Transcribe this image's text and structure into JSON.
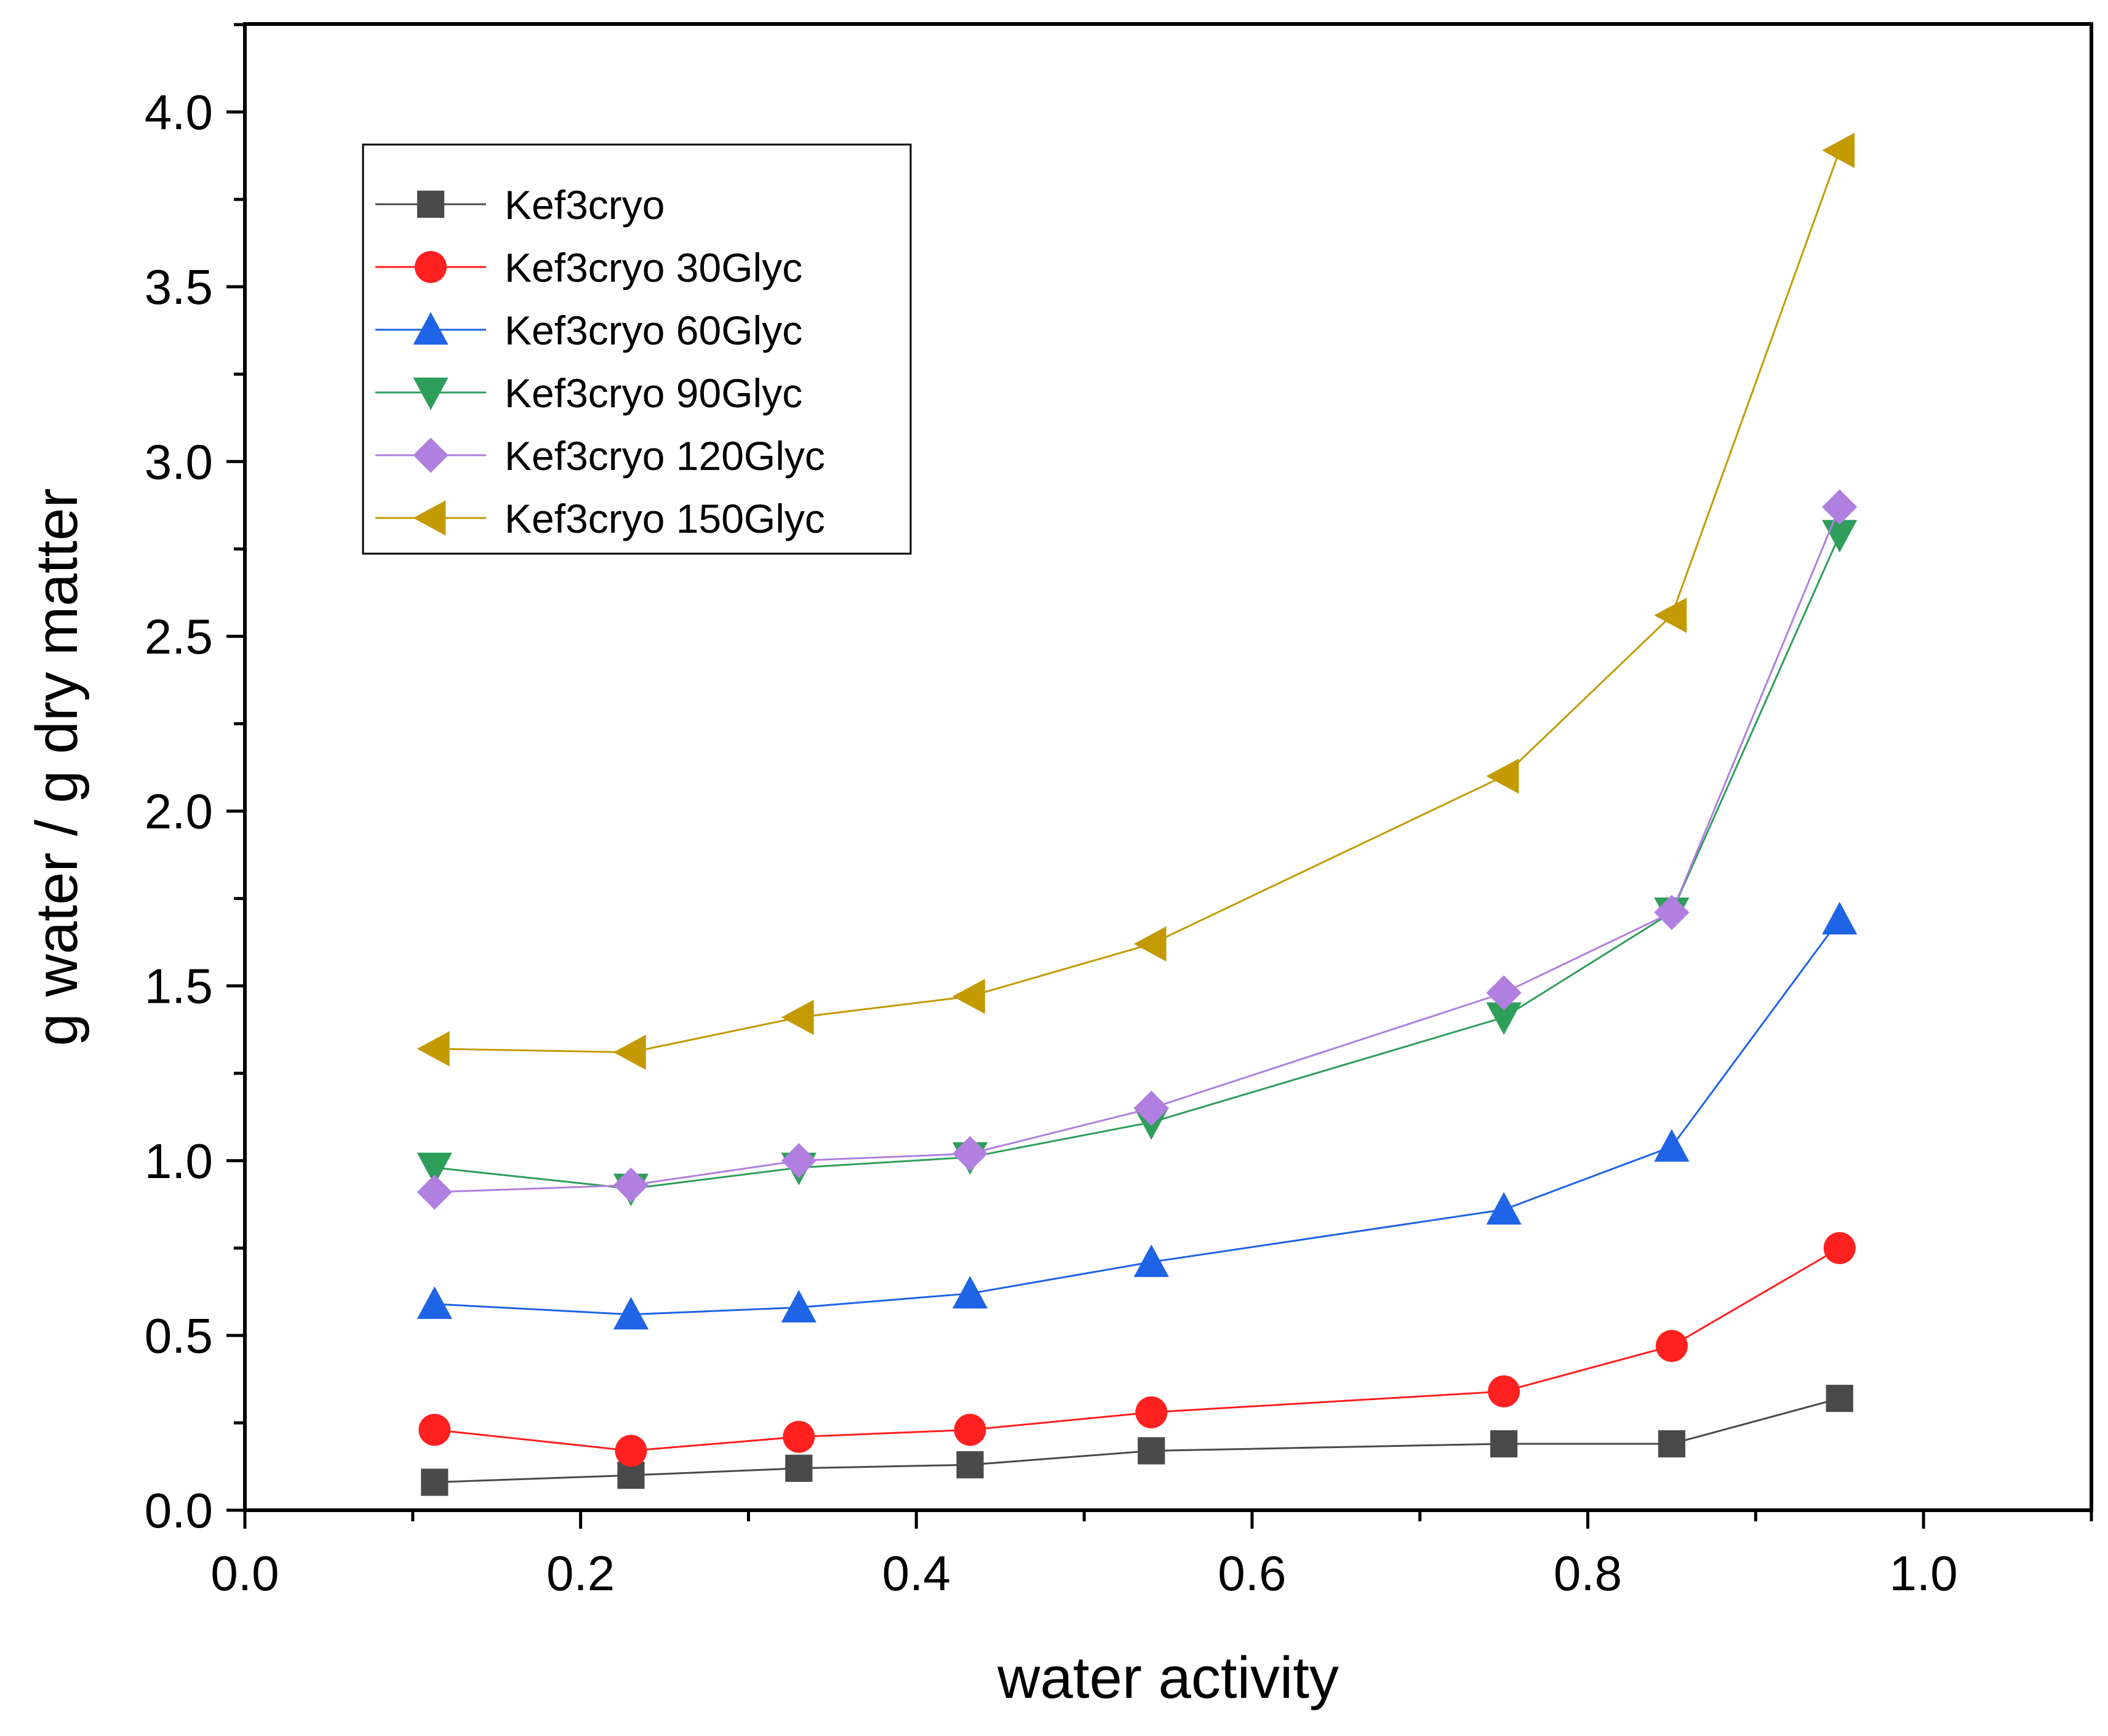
{
  "chart_data": {
    "type": "line",
    "title": "",
    "xlabel": "water activity",
    "ylabel": "g water / g dry matter",
    "xlim": [
      0.0,
      1.1
    ],
    "ylim": [
      0.0,
      4.2
    ],
    "x_ticks": [
      "0.0",
      "0.2",
      "0.4",
      "0.6",
      "0.8",
      "1.0"
    ],
    "y_ticks": [
      "0.0",
      "0.5",
      "1.0",
      "1.5",
      "2.0",
      "2.5",
      "3.0",
      "3.5",
      "4.0"
    ],
    "grid": false,
    "legend_position": "top-left",
    "x": [
      0.113,
      0.23,
      0.33,
      0.432,
      0.54,
      0.75,
      0.85,
      0.95
    ],
    "series": [
      {
        "name": "Kef3cryo",
        "marker": "square",
        "color": "#4a4a4a",
        "values": [
          0.08,
          0.1,
          0.12,
          0.13,
          0.17,
          0.19,
          0.19,
          0.32
        ]
      },
      {
        "name": "Kef3cryo 30Glyc",
        "marker": "circle",
        "color": "#ff2020",
        "values": [
          0.23,
          0.17,
          0.21,
          0.23,
          0.28,
          0.34,
          0.47,
          0.75
        ]
      },
      {
        "name": "Kef3cryo 60Glyc",
        "marker": "triangle-up",
        "color": "#1f63e6",
        "values": [
          0.59,
          0.56,
          0.58,
          0.62,
          0.71,
          0.86,
          1.04,
          1.69
        ]
      },
      {
        "name": "Kef3cryo 90Glyc",
        "marker": "triangle-down",
        "color": "#2e9e5b",
        "values": [
          0.98,
          0.92,
          0.98,
          1.01,
          1.11,
          1.41,
          1.71,
          2.79
        ]
      },
      {
        "name": "Kef3cryo 120Glyc",
        "marker": "diamond",
        "color": "#b07fe0",
        "values": [
          0.91,
          0.93,
          1.0,
          1.02,
          1.15,
          1.48,
          1.71,
          2.87
        ]
      },
      {
        "name": "Kef3cryo 150Glyc",
        "marker": "triangle-left",
        "color": "#c39a00",
        "values": [
          1.32,
          1.31,
          1.41,
          1.47,
          1.62,
          2.1,
          2.56,
          3.89
        ]
      }
    ]
  }
}
